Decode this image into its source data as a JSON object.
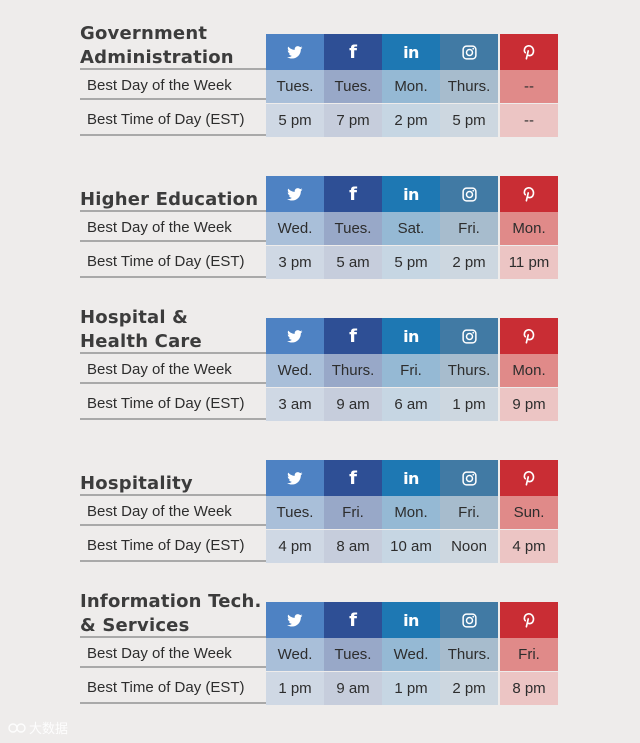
{
  "row_labels": {
    "best_day": "Best Day of the Week",
    "best_time": "Best Time of Day (EST)"
  },
  "networks": [
    "twitter-icon",
    "facebook-icon",
    "linkedin-icon",
    "instagram-icon",
    "pinterest-icon"
  ],
  "icon_glyphs": {
    "facebook": "f",
    "linkedin": "in"
  },
  "colors": {
    "twitter": "#4e82c3",
    "facebook": "#2e4f95",
    "linkedin": "#1e78b3",
    "instagram": "#417aa4",
    "pinterest": "#c92d34",
    "background": "#eeeceb"
  },
  "sections": [
    {
      "title_line1": "Government",
      "title_line2": "Administration",
      "days": [
        "Tues.",
        "Tues.",
        "Mon.",
        "Thurs.",
        "--"
      ],
      "times": [
        "5 pm",
        "7 pm",
        "2 pm",
        "5 pm",
        "--"
      ]
    },
    {
      "title_line1": "Higher Education",
      "title_line2": "",
      "days": [
        "Wed.",
        "Tues.",
        "Sat.",
        "Fri.",
        "Mon."
      ],
      "times": [
        "3 pm",
        "5 am",
        "5 pm",
        "2 pm",
        "11 pm"
      ]
    },
    {
      "title_line1": "Hospital &",
      "title_line2": "Health Care",
      "days": [
        "Wed.",
        "Thurs.",
        "Fri.",
        "Thurs.",
        "Mon."
      ],
      "times": [
        "3 am",
        "9 am",
        "6 am",
        "1 pm",
        "9 pm"
      ]
    },
    {
      "title_line1": "Hospitality",
      "title_line2": "",
      "days": [
        "Tues.",
        "Fri.",
        "Mon.",
        "Fri.",
        "Sun."
      ],
      "times": [
        "4 pm",
        "8 am",
        "10 am",
        "Noon",
        "4 pm"
      ]
    },
    {
      "title_line1": "Information Tech.",
      "title_line2": "& Services",
      "days": [
        "Wed.",
        "Tues.",
        "Wed.",
        "Thurs.",
        "Fri."
      ],
      "times": [
        "1 pm",
        "9 am",
        "1 pm",
        "2 pm",
        "8 pm"
      ]
    }
  ],
  "watermark": "大数据"
}
